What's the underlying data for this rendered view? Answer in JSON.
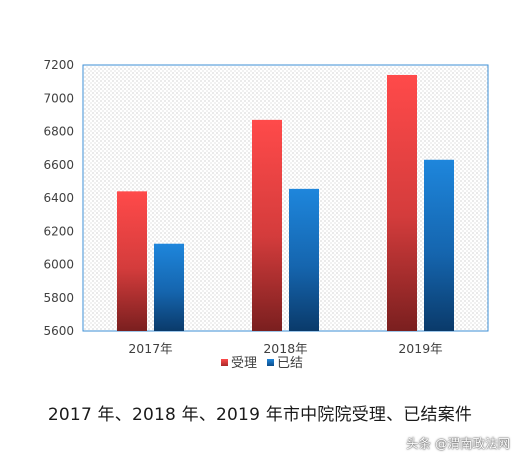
{
  "chart_data": {
    "type": "bar",
    "categories": [
      "2017年",
      "2018年",
      "2019年"
    ],
    "series": [
      {
        "name": "受理",
        "values": [
          6440,
          6870,
          7140
        ],
        "color": "#f04444"
      },
      {
        "name": "已结",
        "values": [
          6125,
          6455,
          6630
        ],
        "color": "#1a78c8"
      }
    ],
    "ylim": [
      5600,
      7200
    ],
    "yticks": [
      5600,
      5800,
      6000,
      6200,
      6400,
      6600,
      6800,
      7000,
      7200
    ],
    "grid": false,
    "legend_position": "bottom"
  },
  "caption": "2017 年、2018 年、2019 年市中院院受理、已结案件",
  "watermark": "头条 @渭南政法网"
}
